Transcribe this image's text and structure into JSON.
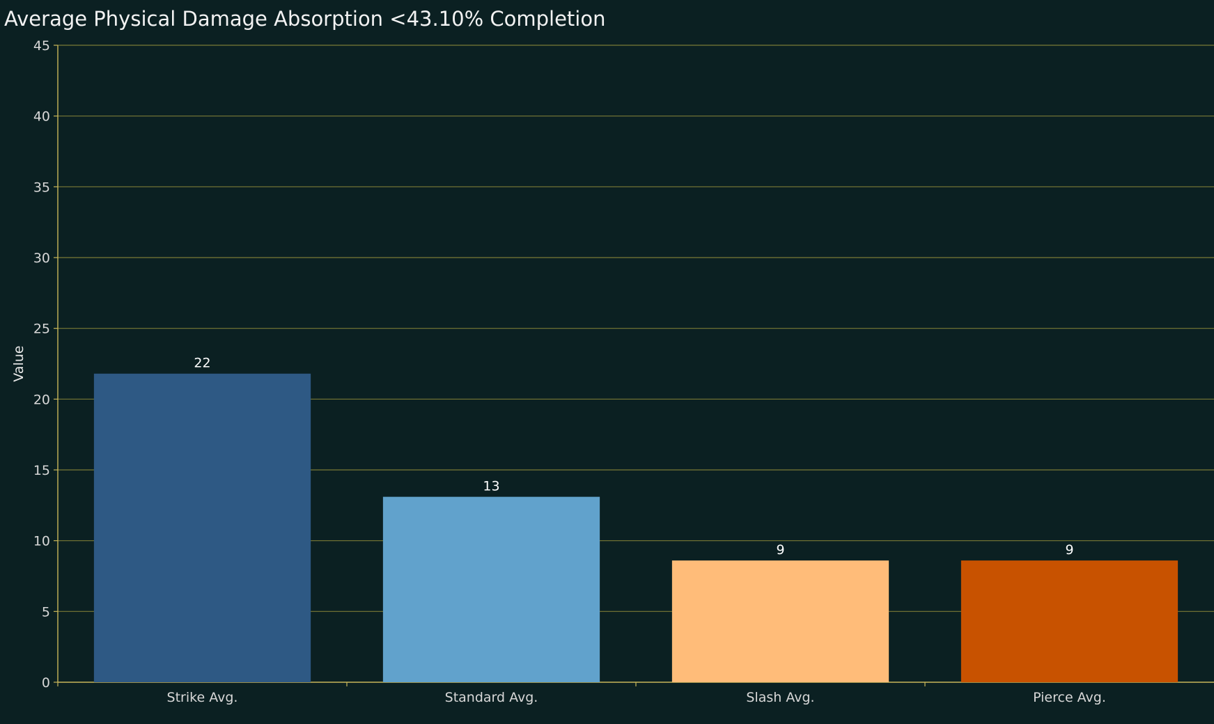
{
  "chart_data": {
    "type": "bar",
    "title": "Average Physical Damage Absorption <43.10% Completion",
    "xlabel": "",
    "ylabel": "Value",
    "categories": [
      "Strike Avg.",
      "Standard Avg.",
      "Slash Avg.",
      "Pierce Avg."
    ],
    "values": [
      21.8,
      13.1,
      8.6,
      8.6
    ],
    "data_labels": [
      "22",
      "13",
      "9",
      "9"
    ],
    "bar_colors": [
      "#2e5984",
      "#61a2cc",
      "#ffbc79",
      "#c85200"
    ],
    "ylim": [
      0,
      45
    ],
    "yticks": [
      0,
      5,
      10,
      15,
      20,
      25,
      30,
      35,
      40,
      45
    ],
    "grid": true,
    "legend": "none",
    "colors": {
      "background": "#0b2022",
      "gridline": "#7a7a36",
      "axis": "#c9b65a",
      "text": "#d8d8d8"
    }
  }
}
